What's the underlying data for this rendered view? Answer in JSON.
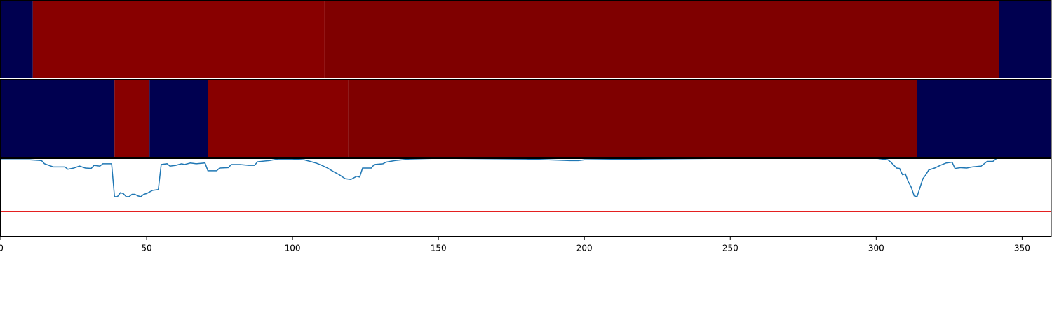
{
  "chart_data": [
    {
      "type": "heatmap",
      "xlim": [
        0,
        360
      ],
      "segments": [
        {
          "x0": 0,
          "x1": 11,
          "color": "#000050"
        },
        {
          "x0": 11,
          "x1": 111,
          "color": "#880000"
        },
        {
          "x0": 111,
          "x1": 342,
          "color": "#7f0000"
        },
        {
          "x0": 342,
          "x1": 360,
          "color": "#000050"
        }
      ]
    },
    {
      "type": "heatmap",
      "xlim": [
        0,
        360
      ],
      "segments": [
        {
          "x0": 0,
          "x1": 39,
          "color": "#000050"
        },
        {
          "x0": 39,
          "x1": 51,
          "color": "#880000"
        },
        {
          "x0": 51,
          "x1": 71,
          "color": "#000050"
        },
        {
          "x0": 71,
          "x1": 119,
          "color": "#880000"
        },
        {
          "x0": 119,
          "x1": 314,
          "color": "#7f0000"
        },
        {
          "x0": 314,
          "x1": 360,
          "color": "#000050"
        }
      ]
    },
    {
      "type": "line",
      "xlim": [
        0,
        360
      ],
      "ylim": [
        0,
        1
      ],
      "color": "#1f77b4",
      "xticks": [
        0,
        50,
        100,
        150,
        200,
        250,
        300,
        350
      ],
      "hline": {
        "value": 0.32,
        "color": "#e00000"
      },
      "x": [
        0,
        10,
        14,
        15,
        18,
        22,
        23,
        25,
        27,
        29,
        31,
        32,
        34,
        35,
        38,
        39,
        40,
        41,
        42,
        43,
        44,
        45,
        46,
        47,
        48,
        49,
        50,
        52,
        54,
        55,
        57,
        58,
        60,
        62,
        63,
        65,
        67,
        70,
        71,
        74,
        75,
        78,
        79,
        82,
        85,
        87,
        88,
        92,
        95,
        100,
        104,
        106,
        108,
        110,
        112,
        114,
        116,
        118,
        120,
        122,
        123,
        124,
        127,
        128,
        131,
        132,
        135,
        140,
        150,
        180,
        195,
        198,
        200,
        220,
        250,
        300,
        304,
        305,
        307,
        308,
        309,
        310,
        311,
        312,
        313,
        314,
        316,
        317,
        318,
        320,
        322,
        324,
        326,
        327,
        329,
        331,
        333,
        336,
        338,
        340,
        341,
        343
      ],
      "values": [
        0.98,
        0.98,
        0.97,
        0.93,
        0.89,
        0.89,
        0.86,
        0.875,
        0.9,
        0.875,
        0.87,
        0.91,
        0.9,
        0.93,
        0.93,
        0.51,
        0.51,
        0.56,
        0.55,
        0.51,
        0.51,
        0.54,
        0.54,
        0.52,
        0.51,
        0.54,
        0.55,
        0.59,
        0.6,
        0.92,
        0.93,
        0.9,
        0.91,
        0.93,
        0.92,
        0.94,
        0.93,
        0.94,
        0.84,
        0.84,
        0.875,
        0.88,
        0.92,
        0.92,
        0.91,
        0.91,
        0.955,
        0.97,
        0.99,
        0.99,
        0.98,
        0.96,
        0.94,
        0.91,
        0.875,
        0.83,
        0.79,
        0.74,
        0.73,
        0.77,
        0.76,
        0.875,
        0.875,
        0.92,
        0.93,
        0.95,
        0.97,
        0.99,
        1.0,
        0.99,
        0.97,
        0.97,
        0.98,
        0.99,
        1.0,
        1.0,
        0.98,
        0.95,
        0.875,
        0.87,
        0.79,
        0.8,
        0.7,
        0.63,
        0.52,
        0.51,
        0.74,
        0.79,
        0.85,
        0.875,
        0.91,
        0.94,
        0.95,
        0.87,
        0.88,
        0.875,
        0.89,
        0.9,
        0.96,
        0.96,
        0.99,
        1.04
      ]
    }
  ]
}
